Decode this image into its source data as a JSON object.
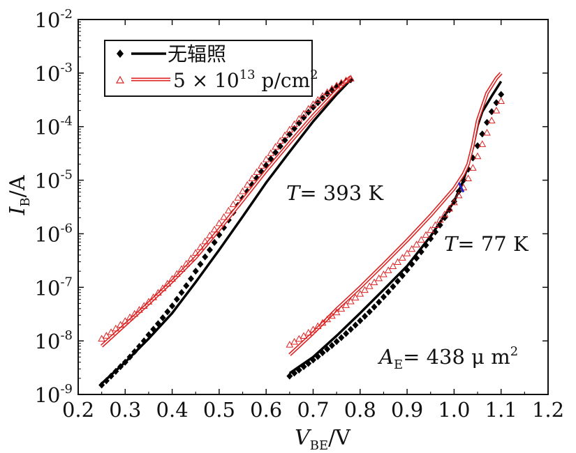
{
  "chart_data": {
    "type": "scatter",
    "title": "",
    "xlabel": {
      "main": "V",
      "sub": "BE",
      "unit": "/V"
    },
    "ylabel": {
      "main": "I",
      "sub": "B",
      "unit": "/A"
    },
    "xlim": [
      0.2,
      1.2
    ],
    "ylim_exponents": [
      -9,
      -2
    ],
    "y_scale": "log",
    "x_ticks": [
      "0.2",
      "0.3",
      "0.4",
      "0.5",
      "0.6",
      "0.7",
      "0.8",
      "0.9",
      "1.0",
      "1.1",
      "1.2"
    ],
    "y_tick_exponents": [
      "-9",
      "-8",
      "-7",
      "-6",
      "-5",
      "-4",
      "-3",
      "-2"
    ],
    "y_tick_base": "10",
    "legend": {
      "position": "top-left",
      "entries": [
        {
          "label": "无辐照",
          "marker": "diamond",
          "line": "solid-black"
        },
        {
          "label_pre": "5 × 10",
          "label_sup": "13",
          "label_post": " p/cm",
          "label_sup2": "2",
          "marker": "triangle-open",
          "line": "double-red"
        }
      ]
    },
    "annotations": [
      {
        "italic": "T",
        "text": "= 393 K"
      },
      {
        "italic": "T",
        "text": "= 77 K"
      },
      {
        "italic": "A",
        "sub": "E",
        "text": "= 438 μ m",
        "sup": "2"
      }
    ],
    "colors": {
      "unirradiated": "#000000",
      "irradiated": "#dd2222",
      "accent": "#2222cc"
    },
    "series": [
      {
        "name": "无辐照",
        "group": "393K-line",
        "style": "line-black",
        "x": [
          0.25,
          0.3,
          0.35,
          0.4,
          0.45,
          0.5,
          0.55,
          0.6,
          0.65,
          0.7,
          0.75,
          0.78
        ],
        "y": [
          1.6e-09,
          4e-09,
          1.1e-08,
          3.3e-08,
          1.25e-07,
          5e-07,
          2.1e-06,
          9e-06,
          3.4e-05,
          0.000125,
          0.0004,
          0.00075
        ]
      },
      {
        "name": "无辐照",
        "group": "393K-markers",
        "style": "diamond",
        "x": [
          0.25,
          0.26,
          0.27,
          0.28,
          0.29,
          0.3,
          0.31,
          0.32,
          0.33,
          0.34,
          0.35,
          0.36,
          0.37,
          0.38,
          0.39,
          0.4,
          0.41,
          0.42,
          0.43,
          0.44,
          0.45,
          0.46,
          0.47,
          0.48,
          0.49,
          0.5,
          0.51,
          0.52,
          0.53,
          0.54,
          0.55,
          0.56,
          0.57,
          0.58,
          0.59,
          0.6,
          0.61,
          0.62,
          0.63,
          0.64,
          0.65,
          0.66,
          0.67,
          0.68,
          0.69,
          0.7,
          0.71,
          0.72,
          0.73,
          0.74,
          0.75,
          0.76,
          0.77,
          0.78
        ],
        "y": [
          1.5e-09,
          1.8e-09,
          2.2e-09,
          2.7e-09,
          3.3e-09,
          4e-09,
          5e-09,
          6.3e-09,
          7.9e-09,
          1e-08,
          1.3e-08,
          1.65e-08,
          2.1e-08,
          2.7e-08,
          3.5e-08,
          4.5e-08,
          6e-08,
          8e-08,
          1.07e-07,
          1.45e-07,
          2e-07,
          2.7e-07,
          3.7e-07,
          5e-07,
          6.9e-07,
          9.5e-07,
          1.3e-06,
          1.8e-06,
          2.5e-06,
          3.4e-06,
          4.6e-06,
          6.2e-06,
          8.3e-06,
          1.1e-05,
          1.45e-05,
          1.9e-05,
          2.5e-05,
          3.3e-05,
          4.3e-05,
          5.6e-05,
          7.2e-05,
          9.2e-05,
          0.000117,
          0.000148,
          0.000186,
          0.00023,
          0.00028,
          0.00034,
          0.00041,
          0.00048,
          0.00056,
          0.00063,
          0.0007,
          0.00075
        ]
      },
      {
        "name": "5 × 10^13 p/cm^2",
        "group": "393K-line",
        "style": "line-red",
        "x": [
          0.25,
          0.3,
          0.35,
          0.4,
          0.45,
          0.5,
          0.55,
          0.6,
          0.65,
          0.7,
          0.75,
          0.78
        ],
        "y": [
          8e-09,
          2e-08,
          5e-08,
          1.3e-07,
          3.6e-07,
          1.2e-06,
          4.2e-06,
          1.5e-05,
          5e-05,
          0.00016,
          0.00047,
          0.00085
        ]
      },
      {
        "name": "5 × 10^13 p/cm^2",
        "group": "393K-markers",
        "style": "triangle",
        "x": [
          0.25,
          0.26,
          0.27,
          0.28,
          0.29,
          0.3,
          0.31,
          0.32,
          0.33,
          0.34,
          0.35,
          0.36,
          0.37,
          0.38,
          0.39,
          0.4,
          0.41,
          0.42,
          0.43,
          0.44,
          0.45,
          0.46,
          0.47,
          0.48,
          0.49,
          0.5,
          0.51,
          0.52,
          0.53,
          0.54,
          0.55,
          0.56,
          0.57,
          0.58,
          0.59,
          0.6,
          0.61,
          0.62,
          0.63,
          0.64,
          0.65,
          0.66,
          0.67,
          0.68,
          0.69,
          0.7,
          0.71,
          0.72,
          0.73,
          0.74,
          0.75,
          0.76,
          0.77,
          0.78
        ],
        "y": [
          1.1e-08,
          1.25e-08,
          1.45e-08,
          1.7e-08,
          2e-08,
          2.35e-08,
          2.75e-08,
          3.2e-08,
          3.8e-08,
          4.5e-08,
          5.4e-08,
          6.5e-08,
          7.9e-08,
          9.6e-08,
          1.17e-07,
          1.44e-07,
          1.78e-07,
          2.2e-07,
          2.75e-07,
          3.45e-07,
          4.4e-07,
          5.6e-07,
          7.2e-07,
          9.3e-07,
          1.2e-06,
          1.57e-06,
          2.05e-06,
          2.7e-06,
          3.55e-06,
          4.7e-06,
          6.2e-06,
          8.2e-06,
          1.08e-05,
          1.42e-05,
          1.86e-05,
          2.45e-05,
          3.2e-05,
          4.2e-05,
          5.4e-05,
          6.9e-05,
          8.8e-05,
          0.000111,
          0.00014,
          0.000174,
          0.000215,
          0.000262,
          0.000315,
          0.000375,
          0.00044,
          0.00051,
          0.000585,
          0.00066,
          0.00073,
          0.00079
        ]
      },
      {
        "name": "无辐照",
        "group": "77K-line",
        "style": "line-black",
        "x": [
          0.65,
          0.7,
          0.75,
          0.8,
          0.85,
          0.9,
          0.95,
          1.0,
          1.02,
          1.04,
          1.05,
          1.06,
          1.08,
          1.1
        ],
        "y": [
          2.5e-09,
          5e-09,
          1.25e-08,
          3.3e-08,
          9e-08,
          2.5e-07,
          9e-07,
          4e-06,
          1e-05,
          4e-05,
          0.000105,
          0.00019,
          0.00037,
          0.0007
        ]
      },
      {
        "name": "无辐照",
        "group": "77K-markers",
        "style": "diamond",
        "x": [
          0.65,
          0.66,
          0.67,
          0.68,
          0.69,
          0.7,
          0.71,
          0.72,
          0.73,
          0.74,
          0.75,
          0.76,
          0.77,
          0.78,
          0.79,
          0.8,
          0.81,
          0.82,
          0.83,
          0.84,
          0.85,
          0.86,
          0.87,
          0.88,
          0.89,
          0.9,
          0.91,
          0.92,
          0.93,
          0.94,
          0.95,
          0.96,
          0.97,
          0.98,
          0.99,
          1.0,
          1.01,
          1.02,
          1.03,
          1.04,
          1.05,
          1.06,
          1.07,
          1.08,
          1.09,
          1.1
        ],
        "y": [
          2.2e-09,
          2.5e-09,
          2.85e-09,
          3.3e-09,
          3.8e-09,
          4.4e-09,
          5.1e-09,
          6e-09,
          7e-09,
          8.2e-09,
          9.7e-09,
          1.15e-08,
          1.37e-08,
          1.64e-08,
          1.97e-08,
          2.38e-08,
          2.88e-08,
          3.5e-08,
          4.3e-08,
          5.3e-08,
          6.6e-08,
          8.2e-08,
          1.03e-07,
          1.3e-07,
          1.65e-07,
          2.1e-07,
          2.7e-07,
          3.5e-07,
          4.6e-07,
          6.1e-07,
          8.1e-07,
          1.08e-06,
          1.45e-06,
          2e-06,
          2.8e-06,
          4e-06,
          6.2e-06,
          1e-05,
          1.6e-05,
          2.6e-05,
          4.4e-05,
          7.3e-05,
          0.00012,
          0.00019,
          0.00028,
          0.0004
        ]
      },
      {
        "name": "5 × 10^13 p/cm^2",
        "group": "77K-line",
        "style": "line-red",
        "x": [
          0.65,
          0.7,
          0.75,
          0.8,
          0.85,
          0.9,
          0.95,
          1.0,
          1.02,
          1.03,
          1.04,
          1.05,
          1.07,
          1.09,
          1.1
        ],
        "y": [
          5.5e-09,
          1.4e-08,
          3.9e-08,
          1e-07,
          2.7e-07,
          7.5e-07,
          2.2e-06,
          7e-06,
          1.3e-05,
          2e-05,
          4.5e-05,
          0.00013,
          0.00042,
          0.0008,
          0.001
        ]
      },
      {
        "name": "5 × 10^13 p/cm^2",
        "group": "77K-markers",
        "style": "triangle",
        "x": [
          0.65,
          0.66,
          0.67,
          0.68,
          0.69,
          0.7,
          0.71,
          0.72,
          0.73,
          0.74,
          0.75,
          0.76,
          0.77,
          0.78,
          0.79,
          0.8,
          0.81,
          0.82,
          0.83,
          0.84,
          0.85,
          0.86,
          0.87,
          0.88,
          0.89,
          0.9,
          0.91,
          0.92,
          0.93,
          0.94,
          0.95,
          0.96,
          0.97,
          0.98,
          0.99,
          1.0,
          1.01,
          1.02,
          1.03,
          1.04,
          1.05,
          1.06,
          1.07,
          1.08,
          1.09,
          1.1
        ],
        "y": [
          8.5e-09,
          9.6e-09,
          1.09e-08,
          1.24e-08,
          1.42e-08,
          1.63e-08,
          1.88e-08,
          2.17e-08,
          2.52e-08,
          2.93e-08,
          3.4e-08,
          3.97e-08,
          4.65e-08,
          5.45e-08,
          6.4e-08,
          7.55e-08,
          8.9e-08,
          1.05e-07,
          1.24e-07,
          1.47e-07,
          1.75e-07,
          2.08e-07,
          2.48e-07,
          2.97e-07,
          3.56e-07,
          4.3e-07,
          5.2e-07,
          6.3e-07,
          7.7e-07,
          9.5e-07,
          1.17e-06,
          1.45e-06,
          1.82e-06,
          2.3e-06,
          2.95e-06,
          3.85e-06,
          5.2e-06,
          7.3e-06,
          1.08e-05,
          1.7e-05,
          2.8e-05,
          4.7e-05,
          7.7e-05,
          0.00013,
          0.0002,
          0.0003
        ]
      }
    ]
  }
}
